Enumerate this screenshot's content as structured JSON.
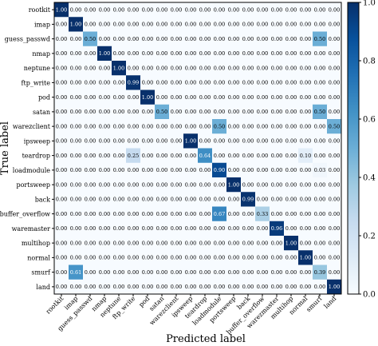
{
  "chart_data": {
    "type": "heatmap",
    "title": "",
    "xlabel": "Predicted label",
    "ylabel": "True label",
    "labels": [
      "rootkit",
      "imap",
      "guess_passwd",
      "nmap",
      "neptune",
      "ftp_write",
      "pod",
      "satan",
      "warezclient",
      "ipsweep",
      "teardrop",
      "loadmodule",
      "portsweep",
      "back",
      "buffer_overflow",
      "warezmaster",
      "multihop",
      "normal",
      "smurf",
      "land"
    ],
    "display_labels": {
      "x": [
        "rootkit",
        "imap",
        "guess_passwd",
        "nmap",
        "neptune",
        "ftp_write",
        "pod",
        "satan",
        "warezclient",
        "ipsweep",
        "teardrop",
        "loadmodule",
        "portsweep",
        "back",
        "buffer_overflow",
        "warezmaster",
        "multihop",
        "normal",
        "smurf",
        "land"
      ],
      "y": [
        "rootkit",
        "imap",
        "guess_passwd",
        "nmap",
        "neptune",
        "ftp_write",
        "pod",
        "satan",
        "warezclient",
        "ipsweep",
        "teardrop",
        "loadmodule",
        "portsweep",
        "back",
        "buffer_overflow",
        "waremaster",
        "multihop",
        "normal",
        "smurf",
        "land"
      ]
    },
    "cells": [
      {
        "row": 0,
        "col": 0,
        "value": 1.0
      },
      {
        "row": 1,
        "col": 1,
        "value": 1.0
      },
      {
        "row": 2,
        "col": 2,
        "value": 0.5
      },
      {
        "row": 2,
        "col": 18,
        "value": 0.5
      },
      {
        "row": 3,
        "col": 3,
        "value": 1.0
      },
      {
        "row": 4,
        "col": 4,
        "value": 1.0
      },
      {
        "row": 5,
        "col": 5,
        "value": 0.99
      },
      {
        "row": 6,
        "col": 6,
        "value": 1.0
      },
      {
        "row": 7,
        "col": 7,
        "value": 0.5
      },
      {
        "row": 7,
        "col": 18,
        "value": 0.5
      },
      {
        "row": 8,
        "col": 11,
        "value": 0.5
      },
      {
        "row": 8,
        "col": 19,
        "value": 0.5
      },
      {
        "row": 9,
        "col": 9,
        "value": 1.0
      },
      {
        "row": 10,
        "col": 5,
        "value": 0.25
      },
      {
        "row": 10,
        "col": 10,
        "value": 0.64
      },
      {
        "row": 10,
        "col": 17,
        "value": 0.1
      },
      {
        "row": 11,
        "col": 11,
        "value": 0.9
      },
      {
        "row": 11,
        "col": 18,
        "value": 0.03
      },
      {
        "row": 12,
        "col": 12,
        "value": 1.0
      },
      {
        "row": 13,
        "col": 13,
        "value": 0.99
      },
      {
        "row": 14,
        "col": 11,
        "value": 0.67
      },
      {
        "row": 14,
        "col": 14,
        "value": 0.33
      },
      {
        "row": 15,
        "col": 15,
        "value": 0.96
      },
      {
        "row": 16,
        "col": 16,
        "value": 1.0
      },
      {
        "row": 17,
        "col": 17,
        "value": 1.0
      },
      {
        "row": 18,
        "col": 1,
        "value": 0.61
      },
      {
        "row": 18,
        "col": 18,
        "value": 0.39
      },
      {
        "row": 19,
        "col": 19,
        "value": 1.0
      }
    ],
    "default_cell_text": "0.00",
    "colorbar": {
      "ticks": [
        "0.0",
        "0.2",
        "0.4",
        "0.6",
        "0.8",
        "1.0"
      ],
      "range": [
        0,
        1
      ],
      "colors": [
        "#f7fbff",
        "#deebf7",
        "#c6dbef",
        "#9ecae1",
        "#6baed6",
        "#4292c6",
        "#2171b5",
        "#08519c",
        "#08306b"
      ]
    },
    "grid": false
  }
}
